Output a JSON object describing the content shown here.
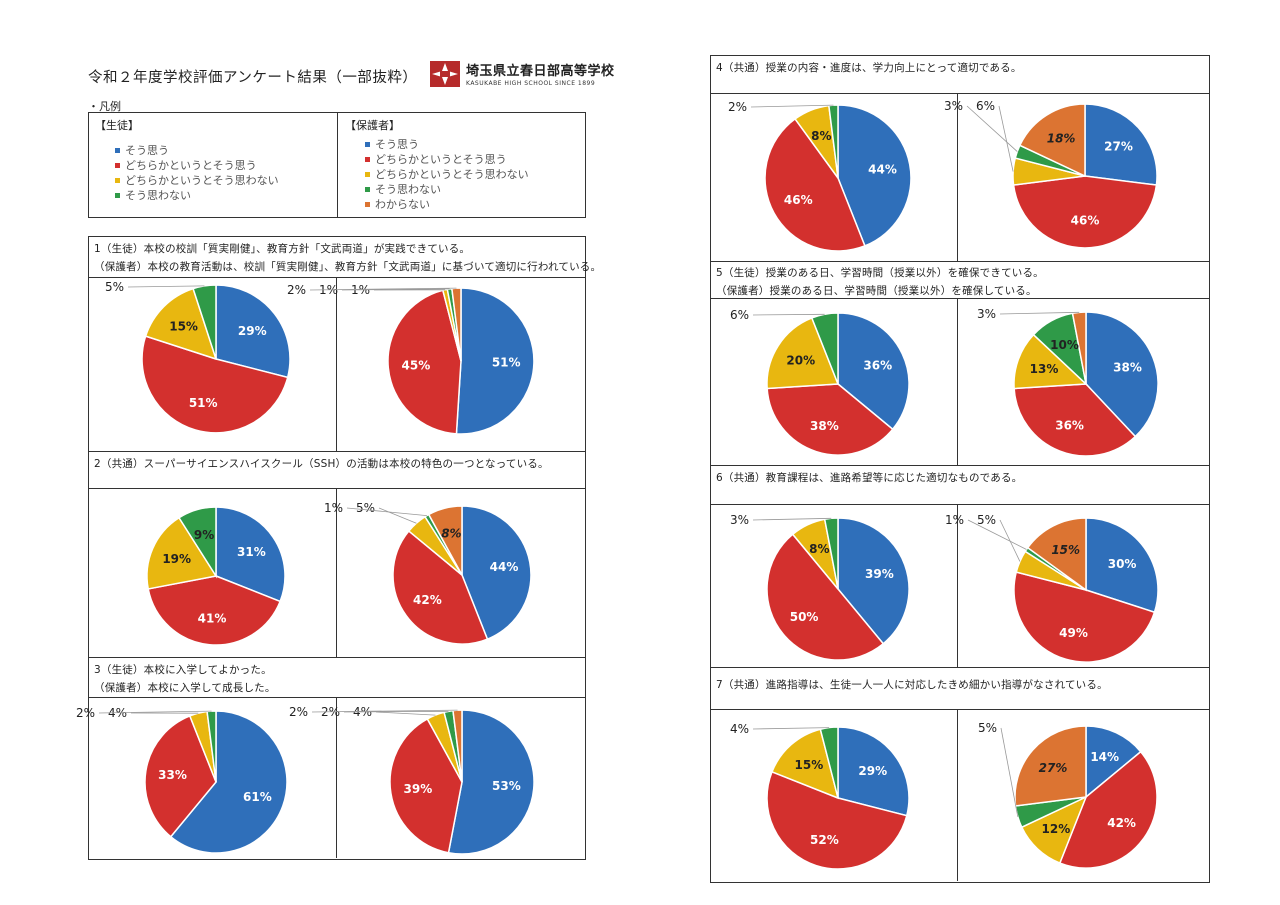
{
  "header": {
    "title": "令和２年度学校評価アンケート結果（一部抜粋）",
    "school_name": "埼玉県立春日部高等学校",
    "school_sub": "KASUKABE HIGH SCHOOL SINCE 1899"
  },
  "legend": {
    "label": "・凡例",
    "student_header": "【生徒】",
    "parent_header": "【保護者】",
    "student_items": [
      "そう思う",
      "どちらかというとそう思う",
      "どちらかというとそう思わない",
      "そう思わない"
    ],
    "parent_items": [
      "そう思う",
      "どちらかというとそう思う",
      "どちらかというとそう思わない",
      "そう思わない",
      "わからない"
    ]
  },
  "colors": {
    "agree": "#2f6fba",
    "somewhat_agree": "#d3302e",
    "somewhat_disagree": "#e8b710",
    "disagree": "#2f9a48",
    "unknown": "#dc7432"
  },
  "questions": {
    "q1": {
      "line1": "1（生徒）本校の校訓「質実剛健」、教育方針「文武両道」が実践できている。",
      "line2": "（保護者）本校の教育活動は、校訓「質実剛健」、教育方針「文武両道」に基づいて適切に行われている。"
    },
    "q2": {
      "line1": "2（共通）スーパーサイエンスハイスクール（SSH）の活動は本校の特色の一つとなっている。"
    },
    "q3": {
      "line1": "3（生徒）本校に入学してよかった。",
      "line2": "（保護者）本校に入学して成長した。"
    },
    "q4": {
      "line1": "4（共通）授業の内容・進度は、学力向上にとって適切である。"
    },
    "q5": {
      "line1": "5（生徒）授業のある日、学習時間（授業以外）を確保できている。",
      "line2": "（保護者）授業のある日、学習時間（授業以外）を確保している。"
    },
    "q6": {
      "line1": "6（共通）教育課程は、進路希望等に応じた適切なものである。"
    },
    "q7": {
      "line1": "7（共通）進路指導は、生徒一人一人に対応したきめ細かい指導がなされている。"
    }
  },
  "chart_data": [
    {
      "id": "q1-student",
      "type": "pie",
      "categories": [
        "そう思う",
        "どちらかというとそう思う",
        "どちらかというとそう思わない",
        "そう思わない"
      ],
      "values": [
        29,
        51,
        15,
        5
      ],
      "labels": [
        "29%",
        "51%",
        "15%",
        "5%"
      ]
    },
    {
      "id": "q1-parent",
      "type": "pie",
      "categories": [
        "そう思う",
        "どちらかというとそう思う",
        "どちらかというとそう思わない",
        "そう思わない",
        "わからない"
      ],
      "values": [
        51,
        45,
        1,
        1,
        2
      ],
      "labels": [
        "51%",
        "45%",
        "1%",
        "1%",
        "2%"
      ]
    },
    {
      "id": "q2-student",
      "type": "pie",
      "categories": [
        "そう思う",
        "どちらかというとそう思う",
        "どちらかというとそう思わない",
        "そう思わない"
      ],
      "values": [
        31,
        41,
        19,
        9
      ],
      "labels": [
        "31%",
        "41%",
        "19%",
        "9%"
      ]
    },
    {
      "id": "q2-parent",
      "type": "pie",
      "categories": [
        "そう思う",
        "どちらかというとそう思う",
        "どちらかというとそう思わない",
        "そう思わない",
        "わからない"
      ],
      "values": [
        44,
        42,
        5,
        1,
        8
      ],
      "labels": [
        "44%",
        "42%",
        "5%",
        "1%",
        "8%"
      ]
    },
    {
      "id": "q3-student",
      "type": "pie",
      "categories": [
        "そう思う",
        "どちらかというとそう思う",
        "どちらかというとそう思わない",
        "そう思わない"
      ],
      "values": [
        61,
        33,
        4,
        2
      ],
      "labels": [
        "61%",
        "33%",
        "4%",
        "2%"
      ]
    },
    {
      "id": "q3-parent",
      "type": "pie",
      "categories": [
        "そう思う",
        "どちらかというとそう思う",
        "どちらかというとそう思わない",
        "そう思わない",
        "わからない"
      ],
      "values": [
        53,
        39,
        4,
        2,
        2
      ],
      "labels": [
        "53%",
        "39%",
        "4%",
        "2%",
        "2%"
      ]
    },
    {
      "id": "q4-student",
      "type": "pie",
      "categories": [
        "そう思う",
        "どちらかというとそう思う",
        "どちらかというとそう思わない",
        "そう思わない"
      ],
      "values": [
        44,
        46,
        8,
        2
      ],
      "labels": [
        "44%",
        "46%",
        "8%",
        "2%"
      ]
    },
    {
      "id": "q4-parent",
      "type": "pie",
      "categories": [
        "そう思う",
        "どちらかというとそう思う",
        "どちらかというとそう思わない",
        "そう思わない",
        "わからない"
      ],
      "values": [
        27,
        46,
        6,
        3,
        18
      ],
      "labels": [
        "27%",
        "46%",
        "6%",
        "3%",
        "18%"
      ]
    },
    {
      "id": "q5-student",
      "type": "pie",
      "categories": [
        "そう思う",
        "どちらかというとそう思う",
        "どちらかというとそう思わない",
        "そう思わない"
      ],
      "values": [
        36,
        38,
        20,
        6
      ],
      "labels": [
        "36%",
        "38%",
        "20%",
        "6%"
      ]
    },
    {
      "id": "q5-parent",
      "type": "pie",
      "categories": [
        "そう思う",
        "どちらかというとそう思う",
        "どちらかというとそう思わない",
        "そう思わない",
        "わからない"
      ],
      "values": [
        38,
        36,
        13,
        10,
        3
      ],
      "labels": [
        "38%",
        "36%",
        "13%",
        "10%",
        "3%"
      ]
    },
    {
      "id": "q6-student",
      "type": "pie",
      "categories": [
        "そう思う",
        "どちらかというとそう思う",
        "どちらかというとそう思わない",
        "そう思わない"
      ],
      "values": [
        39,
        50,
        8,
        3
      ],
      "labels": [
        "39%",
        "50%",
        "8%",
        "3%"
      ]
    },
    {
      "id": "q6-parent",
      "type": "pie",
      "categories": [
        "そう思う",
        "どちらかというとそう思う",
        "どちらかというとそう思わない",
        "そう思わない",
        "わからない"
      ],
      "values": [
        30,
        49,
        5,
        1,
        15
      ],
      "labels": [
        "30%",
        "49%",
        "5%",
        "1%",
        "15%"
      ]
    },
    {
      "id": "q7-student",
      "type": "pie",
      "categories": [
        "そう思う",
        "どちらかというとそう思う",
        "どちらかというとそう思わない",
        "そう思わない"
      ],
      "values": [
        29,
        52,
        15,
        4
      ],
      "labels": [
        "29%",
        "52%",
        "15%",
        "4%"
      ]
    },
    {
      "id": "q7-parent",
      "type": "pie",
      "categories": [
        "そう思う",
        "どちらかというとそう思う",
        "どちらかというとそう思わない",
        "そう思わない",
        "わからない"
      ],
      "values": [
        14,
        42,
        12,
        5,
        27
      ],
      "labels": [
        "14%",
        "42%",
        "12%",
        "5%",
        "27%"
      ]
    }
  ]
}
